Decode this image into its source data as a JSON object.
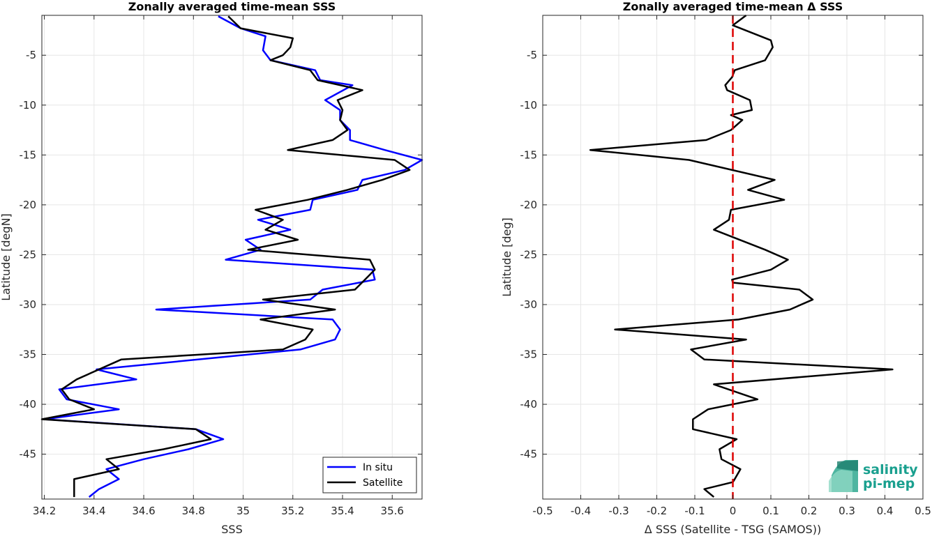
{
  "chart_data": [
    {
      "type": "line",
      "title": "Zonally averaged time-mean SSS",
      "xlabel": "SSS",
      "ylabel": "Latitude [degN]",
      "xlim": [
        34.19,
        35.72
      ],
      "ylim": [
        -49.5,
        -1
      ],
      "xticks": [
        34.2,
        34.4,
        34.6,
        34.8,
        35,
        35.2,
        35.4,
        35.6
      ],
      "xtick_labels": [
        "34.2",
        "34.4",
        "34.6",
        "34.8",
        "35",
        "35.2",
        "35.4",
        "35.6"
      ],
      "yticks": [
        -5,
        -10,
        -15,
        -20,
        -25,
        -30,
        -35,
        -40,
        -45
      ],
      "ytick_labels": [
        "-5",
        "-10",
        "-15",
        "-20",
        "-25",
        "-30",
        "-35",
        "-40",
        "-45"
      ],
      "grid": true,
      "legend_position": "bottom-right",
      "series": [
        {
          "name": "In situ",
          "color": "#0000ff",
          "x": [
            34.9,
            34.99,
            35.09,
            35.08,
            35.11,
            35.29,
            35.31,
            35.44,
            35.33,
            35.39,
            35.39,
            35.43,
            35.43,
            35.57,
            35.72,
            35.65,
            35.48,
            35.46,
            35.28,
            35.27,
            35.06,
            35.19,
            35.01,
            35.07,
            34.93,
            35.52,
            35.53,
            35.32,
            35.27,
            34.65,
            35.36,
            35.39,
            35.37,
            35.23,
            34.41,
            34.57,
            34.26,
            34.29,
            34.5,
            34.2,
            34.81,
            34.92,
            34.78,
            34.6,
            34.45,
            34.5,
            34.42,
            34.38
          ],
          "y": [
            -1.1,
            -2.3,
            -3.1,
            -4.5,
            -5.5,
            -6.5,
            -7.5,
            -8,
            -9.5,
            -10.5,
            -11.5,
            -12.5,
            -13.5,
            -14.5,
            -15.5,
            -16.5,
            -17.5,
            -18.5,
            -19.5,
            -20.5,
            -21.5,
            -22.5,
            -23.5,
            -24.5,
            -25.5,
            -26.5,
            -27.5,
            -28.5,
            -29.5,
            -30.5,
            -31.5,
            -32.5,
            -33.5,
            -34.5,
            -36.5,
            -37.5,
            -38.5,
            -39.5,
            -40.5,
            -41.5,
            -42.5,
            -43.5,
            -44.5,
            -45.5,
            -46.5,
            -47.5,
            -48.5,
            -49.3
          ]
        },
        {
          "name": "Satellite",
          "color": "#000000",
          "x": [
            34.94,
            34.99,
            35.2,
            35.19,
            35.16,
            35.11,
            35.27,
            35.3,
            35.48,
            35.38,
            35.4,
            35.39,
            35.42,
            35.36,
            35.18,
            35.61,
            35.67,
            35.56,
            35.42,
            35.26,
            35.05,
            35.16,
            35.09,
            35.22,
            35.02,
            35.51,
            35.53,
            35.49,
            35.45,
            35.08,
            35.37,
            35.07,
            35.28,
            35.25,
            35.16,
            34.51,
            34.33,
            34.27,
            34.3,
            34.4,
            34.19,
            34.81,
            34.87,
            34.68,
            34.45,
            34.5,
            34.32,
            34.32
          ],
          "y": [
            -1.1,
            -2.3,
            -3.3,
            -4.2,
            -5,
            -5.5,
            -6.5,
            -7.5,
            -8.5,
            -9.5,
            -10.5,
            -11.5,
            -12.5,
            -13.5,
            -14.5,
            -15.5,
            -16.5,
            -17.5,
            -18.5,
            -19.5,
            -20.5,
            -21.5,
            -22.5,
            -23.5,
            -24.5,
            -25.5,
            -26.5,
            -27.5,
            -28.5,
            -29.5,
            -30.5,
            -31.5,
            -32.5,
            -33.5,
            -34.5,
            -35.5,
            -37.5,
            -38.5,
            -39.5,
            -40.5,
            -41.5,
            -42.5,
            -43.5,
            -44.5,
            -45.5,
            -46.5,
            -47.5,
            -49.3
          ]
        }
      ]
    },
    {
      "type": "line",
      "title": "Zonally averaged time-mean Δ SSS",
      "xlabel": "Δ SSS (Satellite - TSG (SAMOS))",
      "ylabel": "Latitude [deg]",
      "xlim": [
        -0.5,
        0.5
      ],
      "ylim": [
        -49.5,
        -1
      ],
      "xticks": [
        -0.5,
        -0.4,
        -0.3,
        -0.2,
        -0.1,
        0,
        0.1,
        0.2,
        0.3,
        0.4,
        0.5
      ],
      "xtick_labels": [
        "-0.5",
        "-0.4",
        "-0.3",
        "-0.2",
        "-0.1",
        "0",
        "0.1",
        "0.2",
        "0.3",
        "0.4",
        "0.5"
      ],
      "yticks": [
        -5,
        -10,
        -15,
        -20,
        -25,
        -30,
        -35,
        -40,
        -45
      ],
      "ytick_labels": [
        "-5",
        "-10",
        "-15",
        "-20",
        "-25",
        "-30",
        "-35",
        "-40",
        "-45"
      ],
      "grid": true,
      "reference_line": {
        "x": 0,
        "color": "#dd0000",
        "style": "dashed"
      },
      "series": [
        {
          "name": "",
          "color": "#000000",
          "x": [
            0.035,
            0.0,
            0.1,
            0.105,
            0.085,
            0.005,
            -0.002,
            -0.02,
            -0.015,
            0.045,
            0.05,
            -0.005,
            0.025,
            -0.005,
            -0.07,
            -0.375,
            -0.115,
            0.11,
            0.04,
            0.135,
            -0.005,
            -0.01,
            -0.05,
            0.085,
            0.145,
            0.1,
            -0.002,
            0.0,
            0.175,
            0.21,
            0.15,
            0.015,
            -0.31,
            0.035,
            -0.11,
            -0.075,
            0.42,
            -0.05,
            0.065,
            -0.065,
            -0.105,
            -0.105,
            0.01,
            -0.035,
            -0.03,
            0.02,
            0.005,
            0.0,
            -0.075,
            -0.05
          ],
          "y": [
            -1,
            -2,
            -3.5,
            -4.2,
            -5.5,
            -6.5,
            -7.2,
            -8,
            -8.5,
            -9.5,
            -10.5,
            -11,
            -11.5,
            -12.5,
            -13.5,
            -14.5,
            -15.5,
            -17.5,
            -18.5,
            -19.5,
            -20.5,
            -21.5,
            -22.5,
            -24.5,
            -25.5,
            -26.5,
            -27.5,
            -27.8,
            -28.5,
            -29.5,
            -30.5,
            -31.5,
            -32.5,
            -33.5,
            -34.5,
            -35.5,
            -36.5,
            -38,
            -39.5,
            -40.5,
            -41.5,
            -42.5,
            -43.5,
            -44.5,
            -45.5,
            -46.5,
            -47.5,
            -47.8,
            -48.5,
            -49.3
          ]
        }
      ]
    }
  ],
  "legend": {
    "in_situ": "In situ",
    "satellite": "Satellite"
  },
  "logo": {
    "line1": "salinity",
    "line2": "pi-mep"
  }
}
